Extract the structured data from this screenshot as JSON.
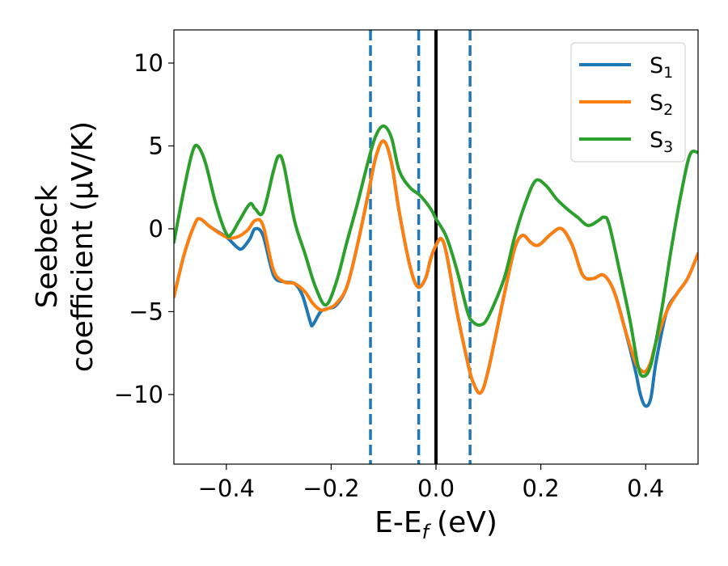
{
  "chart_data": {
    "type": "line",
    "xlabel": "E-E",
    "xlabel_subscript": "f",
    "xlabel_unit": "(eV)",
    "ylabel_line1": "Seebeck",
    "ylabel_line2": "coefficient  (μV/K)",
    "xlim": [
      -0.5,
      0.5
    ],
    "ylim": [
      -14.2,
      12
    ],
    "x_ticks": [
      -0.4,
      -0.2,
      0.0,
      0.2,
      0.4
    ],
    "x_tick_labels": [
      "−0.4",
      "−0.2",
      "0.0",
      "0.2",
      "0.4"
    ],
    "y_ticks": [
      -10,
      -5,
      0,
      5,
      10
    ],
    "y_tick_labels": [
      "−10",
      "−5",
      "0",
      "5",
      "10"
    ],
    "grid": false,
    "legend_position": "top-right",
    "vlines": [
      {
        "x": -0.125,
        "style": "dashed",
        "color": "#1f77b4"
      },
      {
        "x": -0.033,
        "style": "dashed",
        "color": "#1f77b4"
      },
      {
        "x": 0.0,
        "style": "solid",
        "color": "#000000"
      },
      {
        "x": 0.065,
        "style": "dashed",
        "color": "#1f77b4"
      }
    ],
    "series": [
      {
        "name": "S",
        "subscript": "1",
        "color": "#1f77b4",
        "points": [
          [
            -0.5,
            -4.1
          ],
          [
            -0.48,
            -1.5
          ],
          [
            -0.46,
            0.3
          ],
          [
            -0.45,
            0.6
          ],
          [
            -0.43,
            0.1
          ],
          [
            -0.4,
            -0.5
          ],
          [
            -0.38,
            -1.1
          ],
          [
            -0.37,
            -1.2
          ],
          [
            -0.355,
            -0.6
          ],
          [
            -0.345,
            0.0
          ],
          [
            -0.33,
            -0.4
          ],
          [
            -0.31,
            -2.8
          ],
          [
            -0.29,
            -3.2
          ],
          [
            -0.27,
            -3.3
          ],
          [
            -0.255,
            -4.0
          ],
          [
            -0.24,
            -5.6
          ],
          [
            -0.235,
            -5.8
          ],
          [
            -0.22,
            -5.0
          ],
          [
            -0.205,
            -4.8
          ],
          [
            -0.19,
            -4.6
          ],
          [
            -0.17,
            -3.5
          ],
          [
            -0.15,
            -1.0
          ],
          [
            -0.13,
            2.0
          ],
          [
            -0.115,
            4.3
          ],
          [
            -0.1,
            5.3
          ],
          [
            -0.085,
            4.0
          ],
          [
            -0.07,
            1.0
          ],
          [
            -0.05,
            -2.2
          ],
          [
            -0.035,
            -3.5
          ],
          [
            -0.02,
            -3.0
          ],
          [
            -0.01,
            -1.8
          ],
          [
            0.0,
            -1.0
          ],
          [
            0.01,
            -0.6
          ],
          [
            0.02,
            -1.5
          ],
          [
            0.04,
            -5.0
          ],
          [
            0.06,
            -8.0
          ],
          [
            0.07,
            -9.2
          ],
          [
            0.085,
            -9.9
          ],
          [
            0.1,
            -8.5
          ],
          [
            0.13,
            -4.0
          ],
          [
            0.15,
            -1.2
          ],
          [
            0.165,
            -0.4
          ],
          [
            0.18,
            -0.8
          ],
          [
            0.19,
            -1.0
          ],
          [
            0.2,
            -0.9
          ],
          [
            0.22,
            -0.3
          ],
          [
            0.24,
            0.0
          ],
          [
            0.26,
            -1.0
          ],
          [
            0.28,
            -2.8
          ],
          [
            0.3,
            -3.0
          ],
          [
            0.32,
            -2.8
          ],
          [
            0.34,
            -3.8
          ],
          [
            0.36,
            -6.0
          ],
          [
            0.38,
            -8.5
          ],
          [
            0.39,
            -10.0
          ],
          [
            0.4,
            -10.7
          ],
          [
            0.41,
            -10.2
          ],
          [
            0.42,
            -8.0
          ],
          [
            0.44,
            -5.0
          ],
          [
            0.46,
            -3.9
          ],
          [
            0.48,
            -3.0
          ],
          [
            0.5,
            -1.5
          ]
        ]
      },
      {
        "name": "S",
        "subscript": "2",
        "color": "#ff7f0e",
        "points": [
          [
            -0.5,
            -4.1
          ],
          [
            -0.48,
            -1.5
          ],
          [
            -0.46,
            0.3
          ],
          [
            -0.45,
            0.6
          ],
          [
            -0.43,
            0.1
          ],
          [
            -0.4,
            -0.5
          ],
          [
            -0.38,
            -0.5
          ],
          [
            -0.36,
            -0.1
          ],
          [
            -0.345,
            0.5
          ],
          [
            -0.33,
            0.2
          ],
          [
            -0.31,
            -2.5
          ],
          [
            -0.29,
            -3.2
          ],
          [
            -0.27,
            -3.3
          ],
          [
            -0.25,
            -3.8
          ],
          [
            -0.235,
            -4.5
          ],
          [
            -0.22,
            -4.9
          ],
          [
            -0.205,
            -4.8
          ],
          [
            -0.19,
            -4.5
          ],
          [
            -0.17,
            -3.5
          ],
          [
            -0.15,
            -1.0
          ],
          [
            -0.13,
            2.0
          ],
          [
            -0.115,
            4.3
          ],
          [
            -0.1,
            5.3
          ],
          [
            -0.085,
            4.0
          ],
          [
            -0.07,
            1.0
          ],
          [
            -0.05,
            -2.2
          ],
          [
            -0.035,
            -3.5
          ],
          [
            -0.02,
            -3.0
          ],
          [
            -0.01,
            -1.8
          ],
          [
            0.0,
            -1.0
          ],
          [
            0.01,
            -0.6
          ],
          [
            0.02,
            -1.5
          ],
          [
            0.04,
            -5.0
          ],
          [
            0.06,
            -8.0
          ],
          [
            0.07,
            -9.2
          ],
          [
            0.085,
            -9.9
          ],
          [
            0.1,
            -8.5
          ],
          [
            0.13,
            -4.0
          ],
          [
            0.15,
            -1.2
          ],
          [
            0.165,
            -0.4
          ],
          [
            0.18,
            -0.8
          ],
          [
            0.19,
            -1.0
          ],
          [
            0.2,
            -0.9
          ],
          [
            0.22,
            -0.3
          ],
          [
            0.24,
            0.0
          ],
          [
            0.26,
            -1.0
          ],
          [
            0.28,
            -2.8
          ],
          [
            0.3,
            -3.0
          ],
          [
            0.32,
            -2.8
          ],
          [
            0.34,
            -3.8
          ],
          [
            0.36,
            -6.0
          ],
          [
            0.38,
            -8.0
          ],
          [
            0.39,
            -8.5
          ],
          [
            0.4,
            -8.6
          ],
          [
            0.41,
            -8.0
          ],
          [
            0.42,
            -6.8
          ],
          [
            0.44,
            -5.0
          ],
          [
            0.46,
            -3.9
          ],
          [
            0.48,
            -3.0
          ],
          [
            0.5,
            -1.5
          ]
        ]
      },
      {
        "name": "S",
        "subscript": "3",
        "color": "#2ca02c",
        "points": [
          [
            -0.5,
            -0.8
          ],
          [
            -0.48,
            2.5
          ],
          [
            -0.465,
            4.6
          ],
          [
            -0.455,
            5.0
          ],
          [
            -0.44,
            4.0
          ],
          [
            -0.42,
            1.5
          ],
          [
            -0.4,
            -0.3
          ],
          [
            -0.39,
            -0.3
          ],
          [
            -0.375,
            0.5
          ],
          [
            -0.355,
            1.5
          ],
          [
            -0.345,
            1.2
          ],
          [
            -0.33,
            1.0
          ],
          [
            -0.31,
            3.5
          ],
          [
            -0.3,
            4.4
          ],
          [
            -0.29,
            3.8
          ],
          [
            -0.27,
            0.5
          ],
          [
            -0.25,
            -1.5
          ],
          [
            -0.23,
            -3.5
          ],
          [
            -0.21,
            -4.6
          ],
          [
            -0.19,
            -3.2
          ],
          [
            -0.17,
            -0.8
          ],
          [
            -0.15,
            1.5
          ],
          [
            -0.13,
            4.0
          ],
          [
            -0.115,
            5.6
          ],
          [
            -0.1,
            6.2
          ],
          [
            -0.085,
            5.5
          ],
          [
            -0.07,
            3.5
          ],
          [
            -0.05,
            2.5
          ],
          [
            -0.03,
            2.0
          ],
          [
            -0.01,
            1.2
          ],
          [
            0.0,
            0.6
          ],
          [
            0.02,
            -0.5
          ],
          [
            0.04,
            -2.5
          ],
          [
            0.06,
            -5.0
          ],
          [
            0.07,
            -5.6
          ],
          [
            0.085,
            -5.8
          ],
          [
            0.1,
            -5.3
          ],
          [
            0.13,
            -3.0
          ],
          [
            0.15,
            -0.5
          ],
          [
            0.17,
            1.5
          ],
          [
            0.19,
            2.9
          ],
          [
            0.21,
            2.6
          ],
          [
            0.23,
            1.8
          ],
          [
            0.25,
            1.2
          ],
          [
            0.27,
            0.7
          ],
          [
            0.29,
            0.2
          ],
          [
            0.31,
            0.5
          ],
          [
            0.32,
            0.7
          ],
          [
            0.33,
            0.3
          ],
          [
            0.35,
            -2.5
          ],
          [
            0.37,
            -5.5
          ],
          [
            0.385,
            -8.2
          ],
          [
            0.395,
            -8.9
          ],
          [
            0.41,
            -8.2
          ],
          [
            0.43,
            -5.0
          ],
          [
            0.45,
            -1.0
          ],
          [
            0.47,
            2.5
          ],
          [
            0.485,
            4.5
          ],
          [
            0.5,
            4.6
          ]
        ]
      }
    ]
  }
}
